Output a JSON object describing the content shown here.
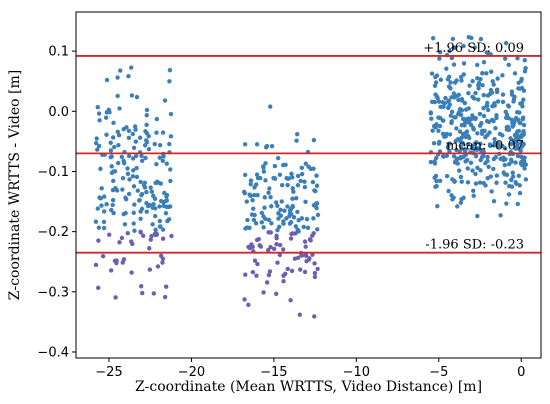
{
  "chart_data": {
    "type": "scatter",
    "title": "",
    "xlabel": "Z-coordinate (Mean WRTTS, Video Distance) [m]",
    "ylabel": "Z-coordinate WRTTS - Video [m]",
    "xlim": [
      -27,
      1.2
    ],
    "ylim": [
      -0.41,
      0.165
    ],
    "xticks": [
      -25,
      -20,
      -15,
      -10,
      -5,
      0
    ],
    "xtick_labels": [
      "−25",
      "−20",
      "−15",
      "−10",
      "−5",
      "0"
    ],
    "yticks": [
      0.1,
      0.0,
      -0.1,
      -0.2,
      -0.3,
      -0.4
    ],
    "ytick_labels": [
      "0.1",
      "0.0",
      "−0.1",
      "−0.2",
      "−0.3",
      "−0.4"
    ],
    "grid": false,
    "point_color": "#3b7fb8",
    "point_color_low": "#6a5fb0",
    "line_color": "#d62728",
    "lines": [
      {
        "name": "upper",
        "y": 0.092,
        "label": "+1.96 SD:  0.09"
      },
      {
        "name": "mean",
        "y": -0.07,
        "label": "mean:  -0.07"
      },
      {
        "name": "lower",
        "y": -0.235,
        "label": "-1.96 SD:  -0.23"
      }
    ],
    "clusters": [
      {
        "x_range": [
          -25.8,
          -21.2
        ],
        "y_range": [
          -0.38,
          0.11
        ],
        "center": -0.12,
        "count": 220
      },
      {
        "x_range": [
          -16.8,
          -12.3
        ],
        "y_range": [
          -0.38,
          0.02
        ],
        "center": -0.17,
        "count": 200
      },
      {
        "x_range": [
          -5.5,
          0.3
        ],
        "y_range": [
          -0.21,
          0.155
        ],
        "center": -0.03,
        "count": 420
      }
    ]
  }
}
